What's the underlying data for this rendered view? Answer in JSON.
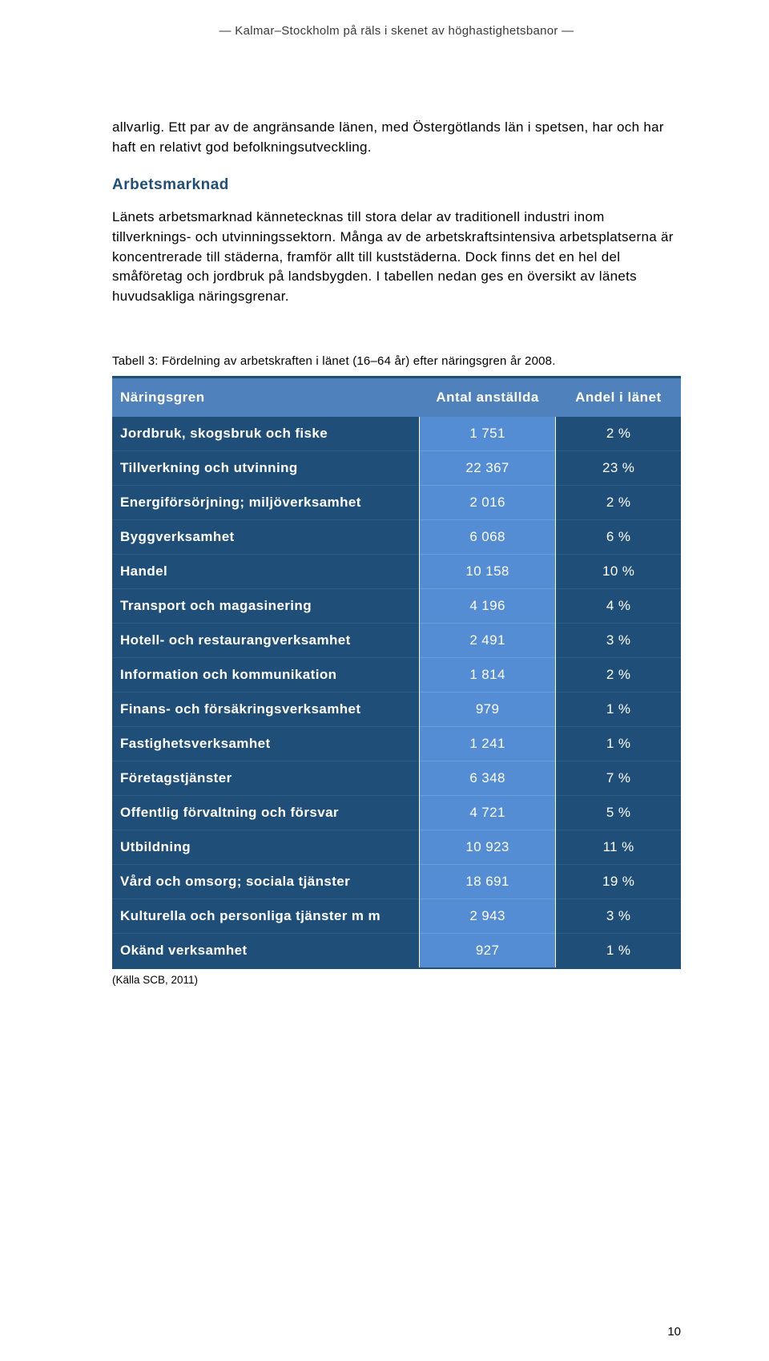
{
  "header": {
    "running_title": "— Kalmar–Stockholm på räls i skenet av höghastighetsbanor —"
  },
  "intro": {
    "para1": "allvarlig. Ett par av de angränsande länen, med Östergötlands län i spetsen, har och har haft en relativt god befolkningsutveckling.",
    "section_heading": "Arbetsmarknad",
    "para2": "Länets arbetsmarknad kännetecknas till stora delar av traditionell industri inom tillverknings- och utvinningssektorn. Många av de arbetskraftsintensiva arbetsplatserna är koncentrerade till städerna, framför allt till kuststäderna. Dock finns det en hel del småföretag och jordbruk på landsbygden. I tabellen nedan ges en översikt av länets huvudsakliga näringsgrenar."
  },
  "table": {
    "caption": "Tabell 3: Fördelning av arbetskraften i länet (16–64 år) efter näringsgren år 2008.",
    "columns": [
      "Näringsgren",
      "Antal anställda",
      "Andel i länet"
    ],
    "rows": [
      [
        "Jordbruk, skogsbruk och fiske",
        "1 751",
        "2 %"
      ],
      [
        "Tillverkning och utvinning",
        "22 367",
        "23 %"
      ],
      [
        "Energiförsörjning; miljöverksamhet",
        "2 016",
        "2 %"
      ],
      [
        "Byggverksamhet",
        "6 068",
        "6 %"
      ],
      [
        "Handel",
        "10 158",
        "10 %"
      ],
      [
        "Transport och magasinering",
        "4 196",
        "4 %"
      ],
      [
        "Hotell- och restaurangverksamhet",
        "2 491",
        "3 %"
      ],
      [
        "Information och kommunikation",
        "1 814",
        "2 %"
      ],
      [
        "Finans- och försäkringsverksamhet",
        "979",
        "1 %"
      ],
      [
        "Fastighetsverksamhet",
        "1 241",
        "1 %"
      ],
      [
        "Företagstjänster",
        "6 348",
        "7 %"
      ],
      [
        "Offentlig förvaltning och försvar",
        "4 721",
        "5 %"
      ],
      [
        "Utbildning",
        "10 923",
        "11 %"
      ],
      [
        "Vård och omsorg; sociala tjänster",
        "18 691",
        "19 %"
      ],
      [
        "Kulturella och personliga tjänster m m",
        "2 943",
        "3 %"
      ],
      [
        "Okänd verksamhet",
        "927",
        "1 %"
      ]
    ],
    "source": "(Källa SCB, 2011)",
    "header_bg": "#4f81bd",
    "col_a_bg": "#1f4e79",
    "col_b_bg": "#548dd4",
    "col_c_bg": "#1f4e79",
    "text_color": "#ffffff",
    "border_color": "#1f4e79"
  },
  "page_number": "10"
}
